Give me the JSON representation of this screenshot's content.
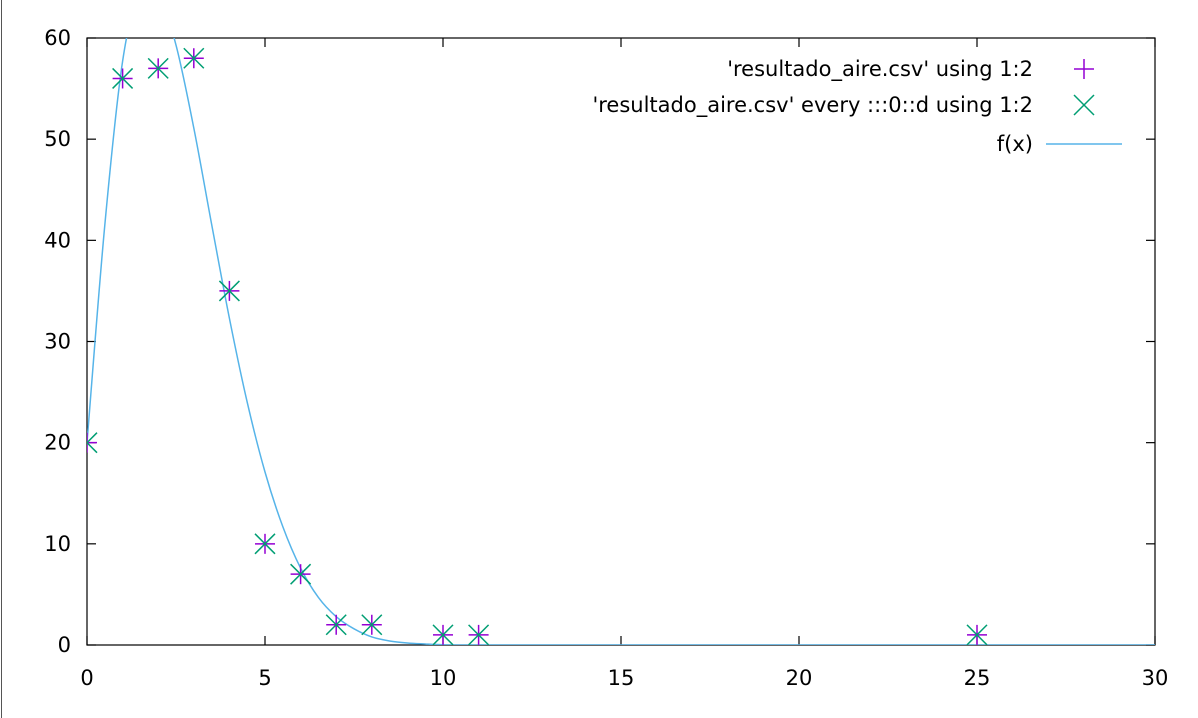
{
  "chart_data": {
    "type": "scatter",
    "title": "",
    "xlabel": "",
    "ylabel": "",
    "xlim": [
      0,
      30
    ],
    "ylim": [
      0,
      60
    ],
    "x_ticks": [
      0,
      5,
      10,
      15,
      20,
      25,
      30
    ],
    "y_ticks": [
      0,
      10,
      20,
      30,
      40,
      50,
      60
    ],
    "x_tick_labels": [
      "0",
      "5",
      "10",
      "15",
      "20",
      "25",
      "30"
    ],
    "y_tick_labels": [
      "0",
      "10",
      "20",
      "30",
      "40",
      "50",
      "60"
    ],
    "grid": false,
    "legend_position": "top-right",
    "series": [
      {
        "name": "'resultado_aire.csv' using 1:2",
        "marker": "plus",
        "color": "#9400d3",
        "x": [
          0,
          1,
          2,
          3,
          4,
          5,
          6,
          7,
          8,
          10,
          11,
          25
        ],
        "y": [
          20,
          56,
          57,
          58,
          35,
          10,
          7,
          2,
          2,
          1,
          1,
          1
        ]
      },
      {
        "name": "'resultado_aire.csv' every :::0::d using 1:2",
        "marker": "cross",
        "color": "#009e73",
        "x": [
          0,
          1,
          2,
          3,
          4,
          5,
          6,
          7,
          8,
          10,
          11,
          25
        ],
        "y": [
          20,
          56,
          57,
          58,
          35,
          10,
          7,
          2,
          2,
          1,
          1,
          1
        ]
      },
      {
        "name": "f(x)",
        "marker": "line",
        "color": "#56b4e9",
        "x": [
          0,
          0.5,
          1,
          1.5,
          2,
          2.5,
          3,
          3.5,
          4,
          4.5,
          5,
          5.5,
          6,
          6.5,
          7,
          7.5,
          8,
          8.5,
          9,
          9.5,
          10,
          10.5,
          11,
          12,
          14,
          17,
          20,
          25,
          30
        ],
        "y": [
          20,
          41.5,
          57.7,
          64.8,
          64.5,
          59.3,
          51.1,
          41.6,
          32.3,
          24,
          17.1,
          11.7,
          7.6,
          4.7,
          2.8,
          1.6,
          0.8,
          0.4,
          0.2,
          0.1,
          0.02,
          0,
          0,
          0,
          0,
          0,
          0,
          0,
          0
        ]
      }
    ]
  }
}
